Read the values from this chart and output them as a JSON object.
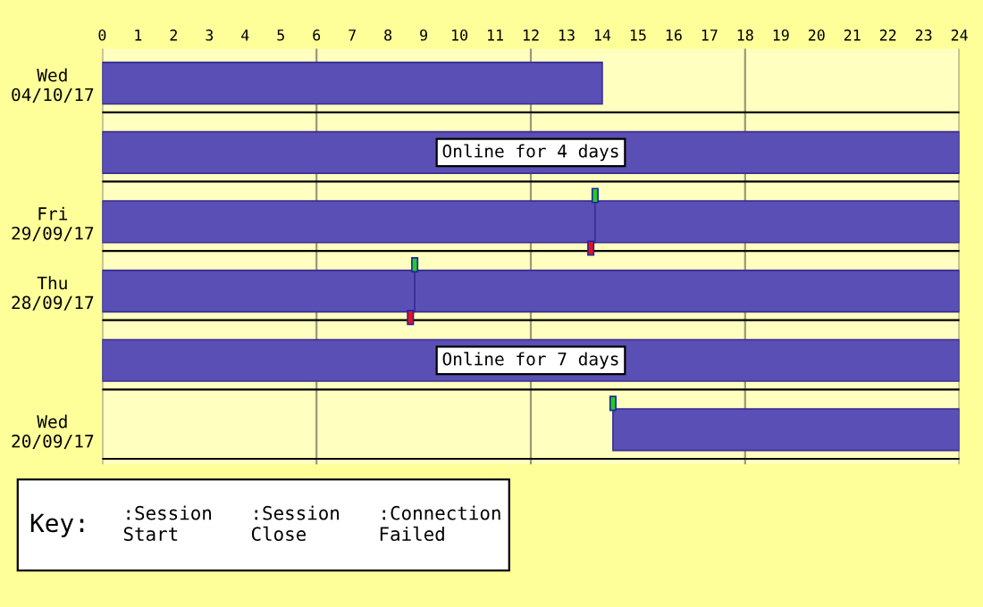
{
  "chart_data": {
    "type": "bar",
    "orientation": "horizontal",
    "categories": [
      "Wed\n04/10/17",
      null,
      "Fri\n29/09/17",
      "Thu\n28/09/17",
      null,
      "Wed\n20/09/17"
    ],
    "series": [
      {
        "color": "#5a4fb4",
        "base": [
          0,
          0,
          0,
          0,
          0,
          null
        ],
        "values": [
          14.0,
          24,
          13.8,
          8.75,
          24,
          null
        ]
      },
      {
        "color": "#5a4fb4",
        "base": [
          null,
          null,
          13.8,
          8.75,
          null,
          14.3
        ],
        "values": [
          null,
          null,
          10.2,
          15.25,
          null,
          9.7
        ]
      }
    ],
    "xlim": [
      0,
      24
    ],
    "xticks": [
      0,
      1,
      2,
      3,
      4,
      5,
      6,
      7,
      8,
      9,
      10,
      11,
      12,
      13,
      14,
      15,
      16,
      17,
      18,
      19,
      20,
      21,
      22,
      23,
      24
    ],
    "grid": "x",
    "bands": [
      {
        "axis": "x",
        "from": 0,
        "to": 24,
        "color": "#ffffc0"
      }
    ],
    "annotations": [
      "Online for 4 days",
      "Online for 7 days",
      "Key:",
      ":Session\nStart",
      ":Session\nClose",
      ":Connection\nFailed"
    ]
  }
}
